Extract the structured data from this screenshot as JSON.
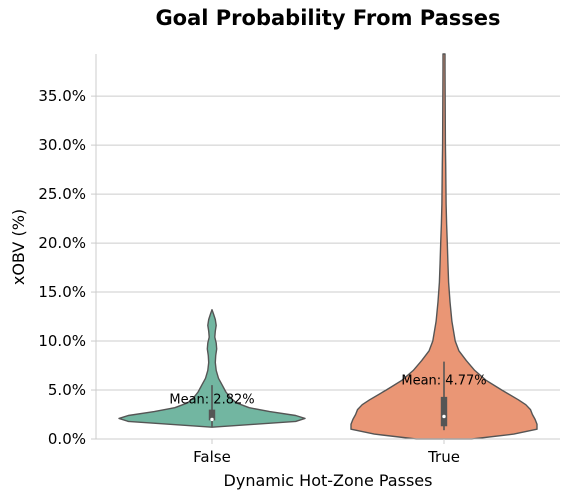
{
  "chart_data": {
    "type": "violin",
    "title": "Goal Probability From Passes",
    "xlabel": "Dynamic Hot-Zone Passes",
    "ylabel": "xOBV (%)",
    "ylim": [
      0,
      39.3
    ],
    "yticks": [
      0,
      5,
      10,
      15,
      20,
      25,
      30,
      35
    ],
    "ytick_labels": [
      "0.0%",
      "5.0%",
      "10.0%",
      "15.0%",
      "20.0%",
      "25.0%",
      "30.0%",
      "35.0%"
    ],
    "grid": "y",
    "categories": [
      "False",
      "True"
    ],
    "groups": [
      {
        "category": "False",
        "color": "#72b6a1",
        "mean_label": "Mean: 2.82%",
        "mean": 2.82,
        "box": {
          "q1": 1.9,
          "median": 2.0,
          "q3": 3.0,
          "whisker_low": 1.2,
          "whisker_high": 5.5
        },
        "density": [
          [
            1.2,
            0.0
          ],
          [
            1.5,
            0.45
          ],
          [
            1.8,
            0.9
          ],
          [
            2.1,
            1.0
          ],
          [
            2.4,
            0.9
          ],
          [
            2.8,
            0.62
          ],
          [
            3.2,
            0.4
          ],
          [
            3.7,
            0.26
          ],
          [
            4.2,
            0.2
          ],
          [
            4.8,
            0.15
          ],
          [
            5.5,
            0.11
          ],
          [
            6.2,
            0.07
          ],
          [
            7.0,
            0.045
          ],
          [
            7.8,
            0.035
          ],
          [
            8.5,
            0.04
          ],
          [
            9.2,
            0.05
          ],
          [
            9.8,
            0.045
          ],
          [
            10.4,
            0.03
          ],
          [
            11.0,
            0.035
          ],
          [
            11.6,
            0.045
          ],
          [
            12.2,
            0.035
          ],
          [
            12.8,
            0.015
          ],
          [
            13.2,
            0.0
          ]
        ]
      },
      {
        "category": "True",
        "color": "#ea9675",
        "mean_label": "Mean: 4.77%",
        "mean": 4.77,
        "box": {
          "q1": 1.3,
          "median": 2.3,
          "q3": 4.3,
          "whisker_low": 0.9,
          "whisker_high": 7.9
        },
        "density": [
          [
            0.0,
            0.3
          ],
          [
            0.5,
            0.75
          ],
          [
            1.0,
            1.0
          ],
          [
            1.5,
            1.0
          ],
          [
            2.0,
            0.98
          ],
          [
            2.5,
            0.95
          ],
          [
            3.0,
            0.93
          ],
          [
            3.5,
            0.88
          ],
          [
            4.0,
            0.8
          ],
          [
            5.0,
            0.62
          ],
          [
            6.0,
            0.45
          ],
          [
            7.0,
            0.33
          ],
          [
            8.0,
            0.24
          ],
          [
            9.0,
            0.16
          ],
          [
            10.0,
            0.12
          ],
          [
            12.0,
            0.085
          ],
          [
            14.0,
            0.065
          ],
          [
            16.0,
            0.05
          ],
          [
            18.0,
            0.042
          ],
          [
            20.0,
            0.035
          ],
          [
            22.0,
            0.028
          ],
          [
            24.0,
            0.023
          ],
          [
            26.0,
            0.02
          ],
          [
            28.0,
            0.018
          ],
          [
            30.0,
            0.015
          ],
          [
            32.0,
            0.014
          ],
          [
            34.0,
            0.013
          ],
          [
            36.0,
            0.012
          ],
          [
            38.0,
            0.011
          ],
          [
            39.3,
            0.011
          ]
        ]
      }
    ]
  }
}
